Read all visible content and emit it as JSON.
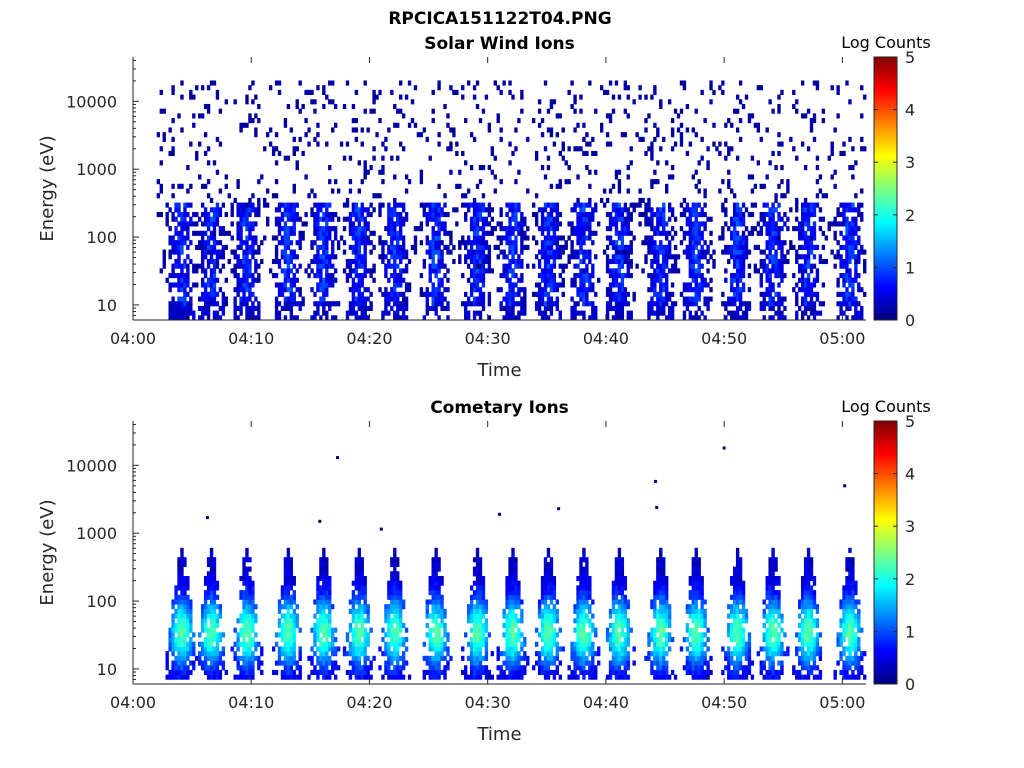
{
  "figure_title": "RPCICA151122T04.PNG",
  "colors": {
    "background": "#ffffff",
    "axis": "#262626",
    "colormap": [
      "#00007f",
      "#0000ff",
      "#007fff",
      "#00ffff",
      "#7fff7f",
      "#ffff00",
      "#ff7f00",
      "#ff0000",
      "#7f0000"
    ]
  },
  "chart_data": [
    {
      "type": "heatmap",
      "title": "Solar Wind Ions",
      "xlabel": "Time",
      "ylabel": "Energy (eV)",
      "x_range": [
        "04:00",
        "05:02"
      ],
      "x_ticks": [
        "04:00",
        "04:10",
        "04:20",
        "04:30",
        "04:40",
        "04:50",
        "05:00"
      ],
      "y_scale": "log",
      "y_range": [
        6,
        45000
      ],
      "y_ticks": [
        10,
        100,
        1000,
        10000
      ],
      "y_tick_labels": [
        "10",
        "100",
        "1000",
        "10000"
      ],
      "colorbar": {
        "label": "Log Counts",
        "range": [
          0,
          5
        ],
        "ticks": [
          "0",
          "1",
          "2",
          "3",
          "4",
          "5"
        ]
      },
      "data_start": "04:02",
      "burst_center_minutes": [
        4,
        6.5,
        9.5,
        13,
        16,
        19,
        22,
        25.5,
        29,
        32,
        35,
        38,
        41,
        44.5,
        47.5,
        51,
        54,
        57,
        60.5
      ],
      "burst_peak_log_counts": 1.1,
      "burst_energy_range_eV": [
        10,
        300
      ],
      "sparse_background_energy_range_eV": [
        30,
        20000
      ],
      "sparse_background_log_counts": 0.1
    },
    {
      "type": "heatmap",
      "title": "Cometary Ions",
      "xlabel": "Time",
      "ylabel": "Energy (eV)",
      "x_range": [
        "04:00",
        "05:02"
      ],
      "x_ticks": [
        "04:00",
        "04:10",
        "04:20",
        "04:30",
        "04:40",
        "04:50",
        "05:00"
      ],
      "y_scale": "log",
      "y_range": [
        6,
        45000
      ],
      "y_ticks": [
        10,
        100,
        1000,
        10000
      ],
      "y_tick_labels": [
        "10",
        "100",
        "1000",
        "10000"
      ],
      "colorbar": {
        "label": "Log Counts",
        "range": [
          0,
          5
        ],
        "ticks": [
          "0",
          "1",
          "2",
          "3",
          "4",
          "5"
        ]
      },
      "data_start": "04:02",
      "burst_center_minutes": [
        4,
        6.5,
        9.5,
        13,
        16,
        19,
        22,
        25.5,
        29,
        32,
        35,
        38,
        41,
        44.5,
        47.5,
        51,
        54,
        57,
        60.5
      ],
      "burst_peak_log_counts": 2.0,
      "burst_peak_energy_eV": 35,
      "burst_energy_range_eV": [
        7,
        600
      ],
      "isolated_points": [
        {
          "time": "04:17.3",
          "energy_eV": 13000
        },
        {
          "time": "04:50.0",
          "energy_eV": 18000
        },
        {
          "time": "04:44.2",
          "energy_eV": 5800
        },
        {
          "time": "05:00.2",
          "energy_eV": 5000
        },
        {
          "time": "04:44.3",
          "energy_eV": 2400
        },
        {
          "time": "04:36.0",
          "energy_eV": 2300
        },
        {
          "time": "04:31.0",
          "energy_eV": 1900
        },
        {
          "time": "04:06.3",
          "energy_eV": 1700
        },
        {
          "time": "04:15.8",
          "energy_eV": 1500
        },
        {
          "time": "04:21.0",
          "energy_eV": 1150
        }
      ]
    }
  ]
}
